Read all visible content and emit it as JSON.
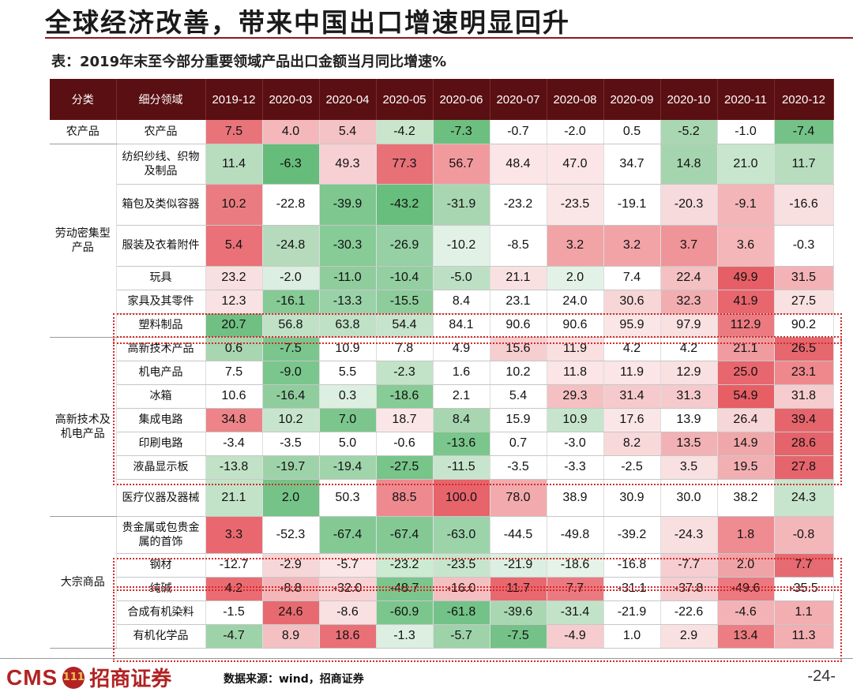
{
  "slide": {
    "title": "全球经济改善，带来中国出口增速明显回升",
    "table_caption": "表：2019年末至今部分重要领域产品出口金额当月同比增速%",
    "source": "数据来源：wind，招商证券",
    "page_number": "-24-",
    "logo": {
      "latin": "CMS",
      "mark": "111",
      "chinese": "招商证券"
    }
  },
  "table": {
    "headers": [
      "分类",
      "细分领域",
      "2019-12",
      "2020-03",
      "2020-04",
      "2020-05",
      "2020-06",
      "2020-07",
      "2020-08",
      "2020-09",
      "2020-10",
      "2020-11",
      "2020-12"
    ],
    "groups": [
      {
        "name": "农产品",
        "rows": [
          {
            "name": "农产品",
            "values": [
              "7.5",
              "4.0",
              "5.4",
              "-4.2",
              "-7.3",
              "-0.7",
              "-2.0",
              "0.5",
              "-5.2",
              "-1.0",
              "-7.4"
            ],
            "colors": [
              "#e8747a",
              "#f4b8bb",
              "#f4c3c5",
              "#c9e5cc",
              "#6dbf80",
              "#ffffff",
              "#ffffff",
              "#ffffff",
              "#a9d7b2",
              "#ffffff",
              "#74c287"
            ]
          }
        ]
      },
      {
        "name": "劳动密集型产品",
        "rows": [
          {
            "name": "纺织纱线、织物及制品",
            "values": [
              "11.4",
              "-6.3",
              "49.3",
              "77.3",
              "56.7",
              "48.4",
              "47.0",
              "34.7",
              "14.8",
              "21.0",
              "11.7"
            ],
            "colors": [
              "#b7dcbe",
              "#66bc7b",
              "#f6d0d2",
              "#e87178",
              "#f19a9e",
              "#fbe5e6",
              "#fbe5e6",
              "#ffffff",
              "#a5d5ae",
              "#c8e5cd",
              "#b7dcbe"
            ]
          },
          {
            "name": "箱包及类似容器",
            "values": [
              "10.2",
              "-22.8",
              "-39.9",
              "-43.2",
              "-31.9",
              "-23.2",
              "-23.5",
              "-19.1",
              "-20.3",
              "-9.1",
              "-16.6"
            ],
            "colors": [
              "#ea7c81",
              "#ffffff",
              "#7ec78f",
              "#68be7c",
              "#a8d6b1",
              "#ffffff",
              "#fbe6e7",
              "#ffffff",
              "#f7dadb",
              "#f3b5b8",
              "#f8dfe0"
            ]
          },
          {
            "name": "服装及衣着附件",
            "values": [
              "5.4",
              "-24.8",
              "-30.3",
              "-26.9",
              "-10.2",
              "-8.5",
              "3.2",
              "3.2",
              "3.7",
              "3.6",
              "-0.3"
            ],
            "colors": [
              "#ea7177",
              "#b5dbbc",
              "#87cb97",
              "#96d0a4",
              "#e2f1e5",
              "#ffffff",
              "#f1a3a6",
              "#f1a3a6",
              "#ef9498",
              "#f4b6b9",
              "#ffffff"
            ]
          },
          {
            "name": "玩具",
            "values": [
              "23.2",
              "-2.0",
              "-11.0",
              "-10.4",
              "-5.0",
              "21.1",
              "2.0",
              "7.4",
              "22.4",
              "49.9",
              "31.5"
            ],
            "colors": [
              "#f8dfe0",
              "#dbeedf",
              "#8fcd9d",
              "#94cfa2",
              "#bde0c4",
              "#f9e1e2",
              "#e3f2e6",
              "#ffffff",
              "#f4c0c2",
              "#e75f66",
              "#f3b3b6"
            ]
          },
          {
            "name": "家具及其零件",
            "values": [
              "12.3",
              "-16.1",
              "-13.3",
              "-15.5",
              "8.4",
              "23.1",
              "24.0",
              "30.6",
              "32.3",
              "41.9",
              "27.5"
            ],
            "colors": [
              "#f9e2e3",
              "#86ca96",
              "#9ad2a8",
              "#8dcc9b",
              "#ffffff",
              "#ffffff",
              "#ffffff",
              "#f7d6d8",
              "#f2adb0",
              "#e8666d",
              "#f9e1e2"
            ]
          },
          {
            "name": "塑料制品",
            "values": [
              "20.7",
              "56.8",
              "63.8",
              "54.4",
              "84.1",
              "90.6",
              "90.6",
              "95.9",
              "97.9",
              "112.9",
              "90.2"
            ],
            "colors": [
              "#70c083",
              "#bfe1c6",
              "#bfe1c6",
              "#c5e4cb",
              "#ffffff",
              "#ffffff",
              "#ffffff",
              "#fbe6e7",
              "#f9e0e1",
              "#ec7b81",
              "#ffffff"
            ]
          }
        ]
      },
      {
        "name": "高新技术及机电产品",
        "rows": [
          {
            "name": "高新技术产品",
            "values": [
              "0.6",
              "-7.5",
              "10.9",
              "7.8",
              "4.9",
              "15.6",
              "11.9",
              "4.2",
              "4.2",
              "21.1",
              "26.5"
            ],
            "colors": [
              "#a7d6b0",
              "#7bc68c",
              "#ffffff",
              "#ffffff",
              "#ffffff",
              "#f6ced0",
              "#fadfe0",
              "#ffffff",
              "#ffffff",
              "#f09ba0",
              "#e6676e"
            ]
          },
          {
            "name": "机电产品",
            "values": [
              "7.5",
              "-9.0",
              "5.5",
              "-2.3",
              "1.6",
              "10.2",
              "11.8",
              "11.9",
              "12.9",
              "25.0",
              "23.1"
            ],
            "colors": [
              "#ffffff",
              "#7ac68c",
              "#ffffff",
              "#c2e3c8",
              "#ffffff",
              "#ffffff",
              "#fbe5e6",
              "#fbe5e6",
              "#f9e0e1",
              "#e8666d",
              "#ee888d"
            ]
          },
          {
            "name": "冰箱",
            "values": [
              "10.6",
              "-16.4",
              "0.3",
              "-18.6",
              "2.1",
              "5.4",
              "29.3",
              "31.4",
              "31.3",
              "54.9",
              "31.8"
            ],
            "colors": [
              "#ffffff",
              "#8fcd9d",
              "#dcefe0",
              "#87cb96",
              "#ffffff",
              "#ffffff",
              "#f4c0c2",
              "#f6cacc",
              "#f6cacc",
              "#e75e65",
              "#f6ccce"
            ]
          },
          {
            "name": "集成电路",
            "values": [
              "34.8",
              "10.2",
              "7.0",
              "18.7",
              "8.4",
              "15.9",
              "10.9",
              "17.6",
              "13.9",
              "26.4",
              "39.4"
            ],
            "colors": [
              "#ed8489",
              "#c7e5cd",
              "#7cc68d",
              "#fbe6e7",
              "#a7d6b0",
              "#ffffff",
              "#c7e5cd",
              "#fbe6e7",
              "#ffffff",
              "#f7d6d8",
              "#e6656c"
            ]
          },
          {
            "name": "印刷电路",
            "values": [
              "-3.4",
              "-3.5",
              "5.0",
              "-0.6",
              "-13.6",
              "0.7",
              "-3.0",
              "8.2",
              "13.5",
              "14.9",
              "28.6"
            ],
            "colors": [
              "#ffffff",
              "#ffffff",
              "#ffffff",
              "#ffffff",
              "#7bc68c",
              "#ffffff",
              "#ffffff",
              "#f7d9da",
              "#f2b1b4",
              "#f0a7aa",
              "#e5636a"
            ]
          },
          {
            "name": "液晶显示板",
            "values": [
              "-13.8",
              "-19.7",
              "-19.4",
              "-27.5",
              "-11.5",
              "-3.5",
              "-3.3",
              "-2.5",
              "3.5",
              "19.5",
              "27.8"
            ],
            "colors": [
              "#c1e2c7",
              "#9ed3aa",
              "#a0d4ab",
              "#78c58a",
              "#c7e5cd",
              "#ffffff",
              "#ffffff",
              "#ffffff",
              "#f9e0e1",
              "#f2afb2",
              "#e6656c"
            ]
          },
          {
            "name": "医疗仪器及器械",
            "values": [
              "21.1",
              "2.0",
              "50.3",
              "88.5",
              "100.0",
              "78.0",
              "38.9",
              "30.9",
              "30.0",
              "38.2",
              "24.3"
            ],
            "colors": [
              "#c2e3c8",
              "#75c388",
              "#ffffff",
              "#ee8a8f",
              "#e7646b",
              "#f2aaad",
              "#ffffff",
              "#ffffff",
              "#ffffff",
              "#ffffff",
              "#c7e5cd"
            ]
          }
        ]
      },
      {
        "name": "大宗商品",
        "rows": [
          {
            "name": "贵金属或包贵金属的首饰",
            "values": [
              "3.3",
              "-52.3",
              "-67.4",
              "-67.4",
              "-63.0",
              "-44.5",
              "-49.8",
              "-39.2",
              "-24.3",
              "1.8",
              "-0.8"
            ],
            "colors": [
              "#e9686f",
              "#ffffff",
              "#84c994",
              "#84c994",
              "#9dd3a9",
              "#ffffff",
              "#ffffff",
              "#ffffff",
              "#f8dfe0",
              "#ee8c91",
              "#f3b7ba"
            ]
          },
          {
            "name": "钢材",
            "values": [
              "-12.7",
              "-2.9",
              "-5.7",
              "-23.2",
              "-23.5",
              "-21.9",
              "-18.6",
              "-16.8",
              "-7.7",
              "2.0",
              "7.7"
            ],
            "colors": [
              "#ffffff",
              "#f7d6d8",
              "#fbe6e7",
              "#ccebd2",
              "#c7e5cd",
              "#dcefe0",
              "#e6f3e8",
              "#ffffff",
              "#f6cdd0",
              "#f0a3a7",
              "#e66a71"
            ]
          },
          {
            "name": "纯碱",
            "values": [
              "4.2",
              "-8.8",
              "-32.0",
              "-48.7",
              "-16.0",
              "11.7",
              "7.7",
              "-31.1",
              "-37.8",
              "-49.6",
              "-35.5"
            ],
            "colors": [
              "#e96c72",
              "#f3b6b9",
              "#f7d3d5",
              "#7bc68c",
              "#f4bfc1",
              "#e8686f",
              "#eb7a80",
              "#ffffff",
              "#f6cdd0",
              "#ec797f",
              "#ffffff"
            ]
          },
          {
            "name": "合成有机染料",
            "values": [
              "-1.5",
              "24.6",
              "-8.6",
              "-60.9",
              "-61.8",
              "-39.6",
              "-31.4",
              "-21.9",
              "-22.6",
              "-4.6",
              "1.1"
            ],
            "colors": [
              "#ffffff",
              "#e86a71",
              "#f9e0e1",
              "#7bc68c",
              "#73c287",
              "#a9d7b2",
              "#c2e3c8",
              "#ffffff",
              "#ffffff",
              "#f3b3b6",
              "#f2aeb1"
            ]
          },
          {
            "name": "有机化学品",
            "values": [
              "-4.7",
              "8.9",
              "18.6",
              "-1.3",
              "-5.7",
              "-7.5",
              "-4.9",
              "1.0",
              "2.9",
              "13.4",
              "11.3"
            ],
            "colors": [
              "#9ed3aa",
              "#f4c0c2",
              "#ea7077",
              "#dcefe0",
              "#9ed3aa",
              "#74c287",
              "#f6ccce",
              "#ffffff",
              "#f9e0e1",
              "#ec7d83",
              "#f2aeb1"
            ]
          }
        ]
      }
    ]
  }
}
